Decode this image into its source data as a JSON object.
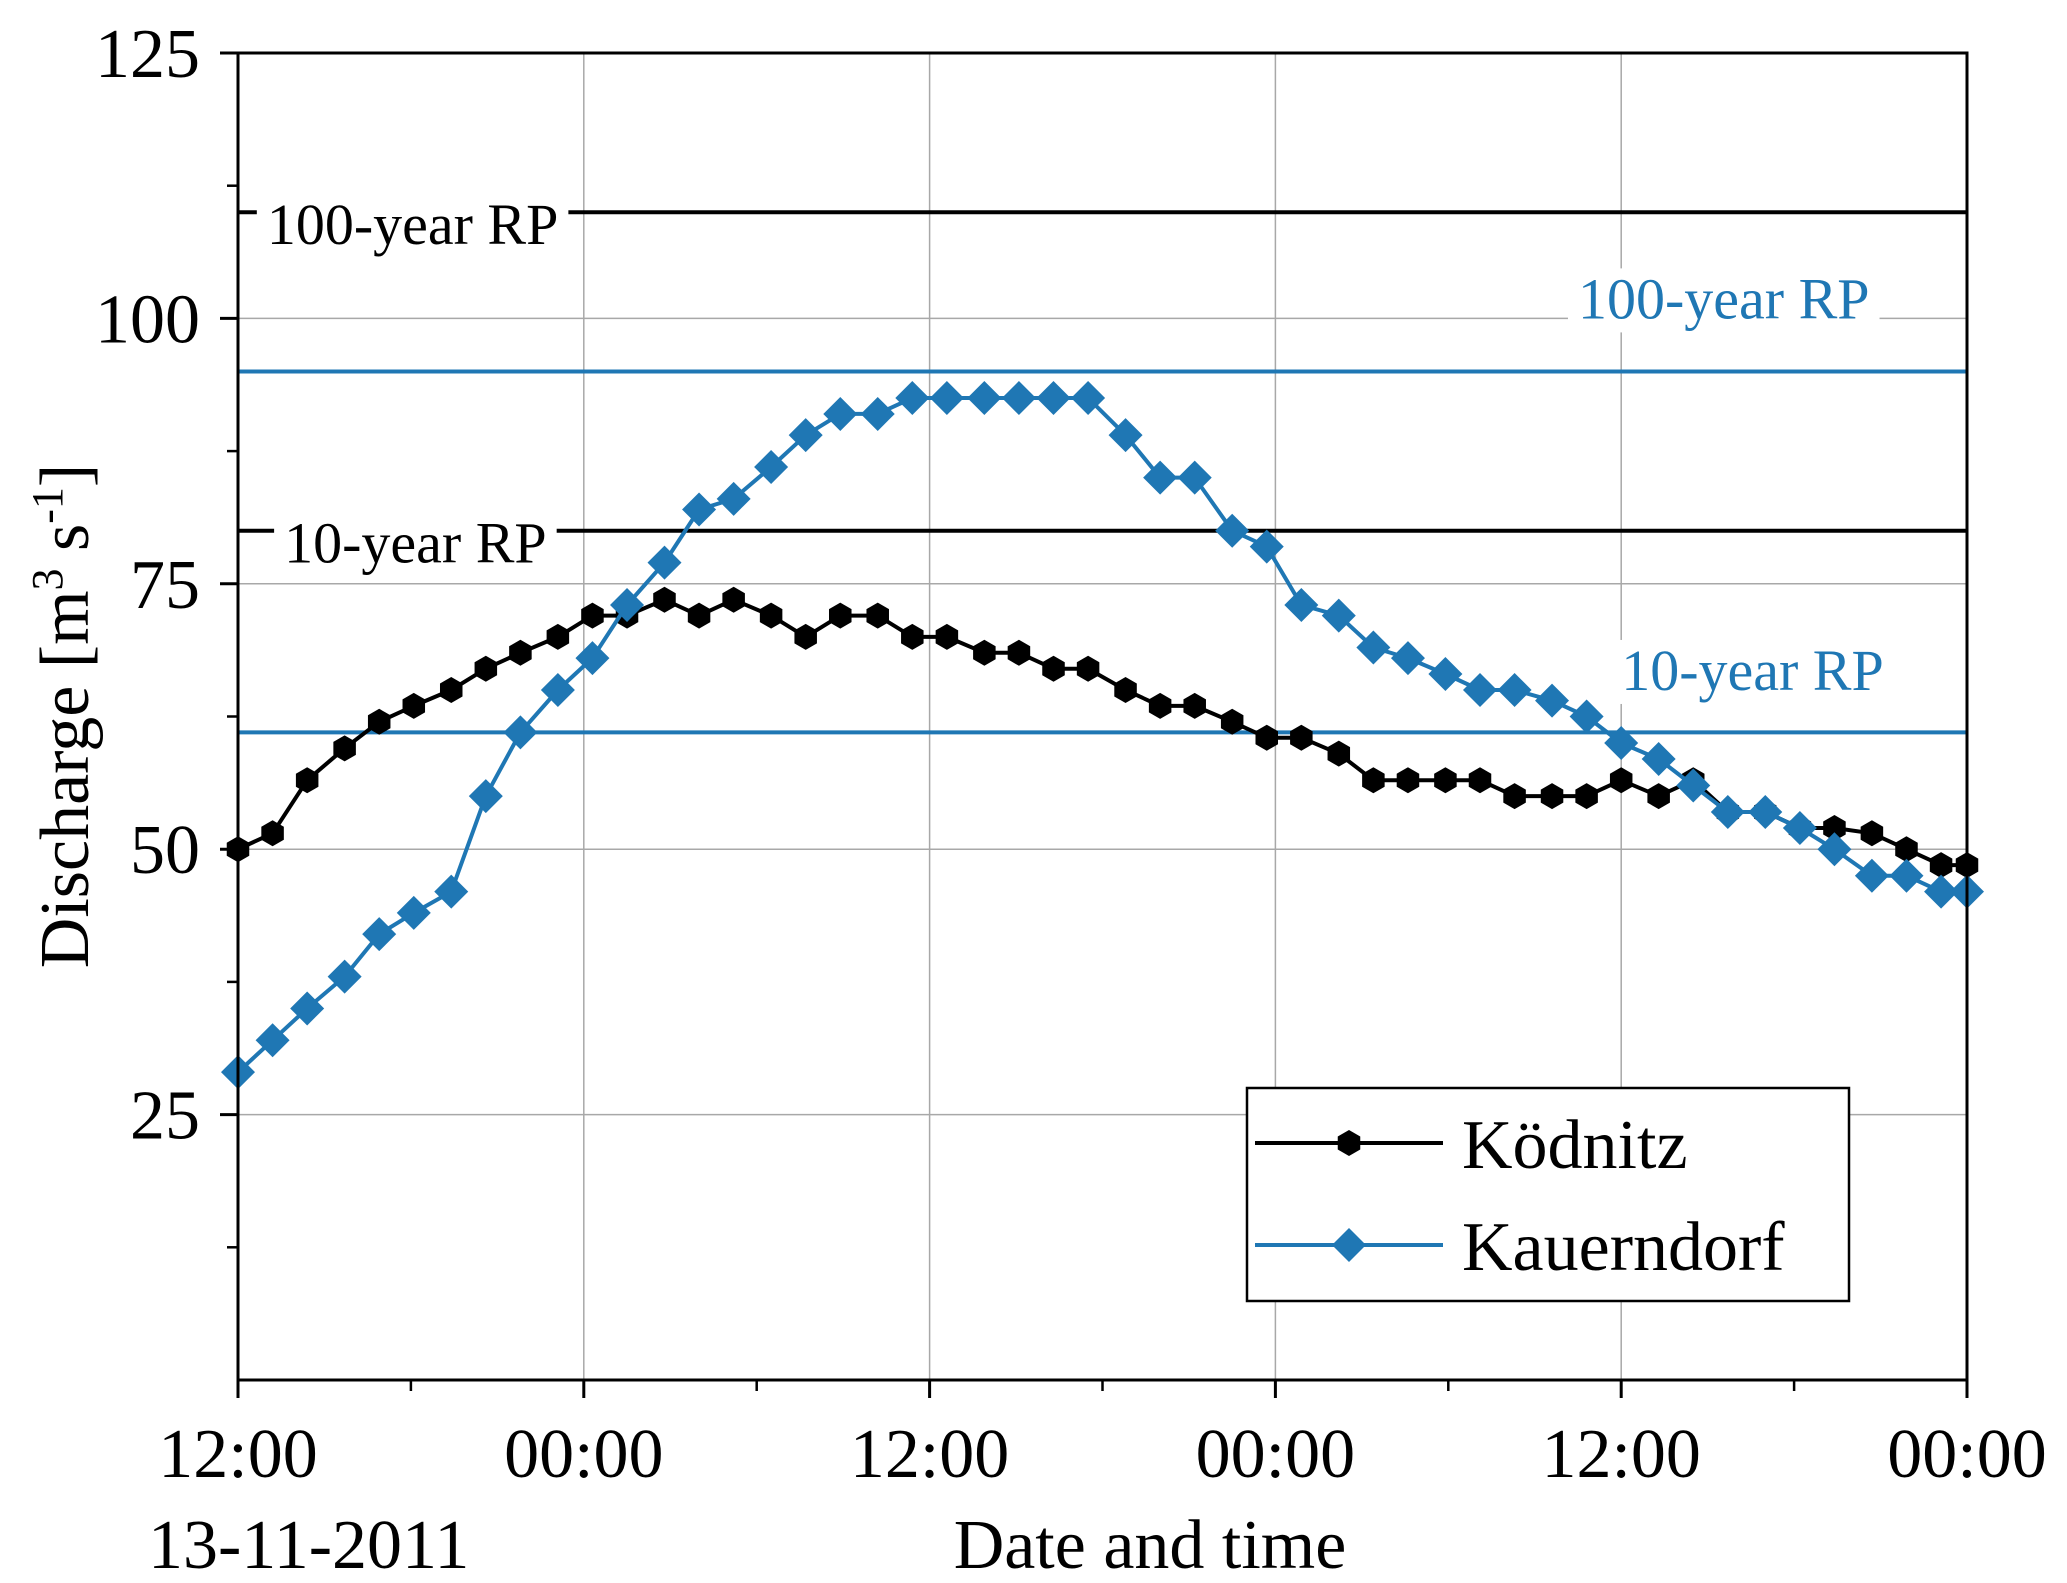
{
  "chart_data": {
    "type": "line",
    "xlabel": "Date and time",
    "ylabel_main": "Discharge [m",
    "ylabel_sup1": "3",
    "ylabel_mid": " s",
    "ylabel_sup2": "-1",
    "ylabel_end": "]",
    "start_date_label": "13-11-2011",
    "xlim": [
      0,
      60
    ],
    "ylim": [
      0,
      125
    ],
    "x_ticks": [
      0,
      12,
      24,
      36,
      48,
      60
    ],
    "x_tick_labels": [
      "12:00",
      "00:00",
      "12:00",
      "00:00",
      "12:00",
      "00:00"
    ],
    "x_minor_ticks": [
      6,
      18,
      30,
      42,
      54
    ],
    "y_ticks": [
      25,
      50,
      75,
      100,
      125
    ],
    "y_tick_labels": [
      "25",
      "50",
      "75",
      "100",
      "125"
    ],
    "y_minor_ticks": [
      12.5,
      37.5,
      62.5,
      87.5,
      112.5
    ],
    "grid": true,
    "legend_position": "bottom-right",
    "reference_lines": [
      {
        "label": "100-year RP",
        "value": 110,
        "color": "#000000",
        "label_x": 1,
        "label_dy": -3
      },
      {
        "label": "10-year RP",
        "value": 80,
        "color": "#000000",
        "label_x": 1.6,
        "label_dy": -3
      },
      {
        "label": "100-year RP",
        "value": 95,
        "color": "#1f77b4",
        "label_x": 46.5,
        "label_dy": 5
      },
      {
        "label": "10-year RP",
        "value": 61,
        "color": "#1f77b4",
        "label_x": 48,
        "label_dy": 4
      }
    ],
    "series": [
      {
        "name": "Ködnitz",
        "color": "#000000",
        "marker": "hexagon",
        "x": [
          0,
          1.2,
          2.4,
          3.7,
          4.9,
          6.1,
          7.4,
          8.6,
          9.8,
          11.1,
          12.3,
          13.5,
          14.8,
          16,
          17.2,
          18.5,
          19.7,
          20.9,
          22.2,
          23.4,
          24.6,
          25.9,
          27.1,
          28.3,
          29.5,
          30.8,
          32,
          33.2,
          34.5,
          35.7,
          36.9,
          38.2,
          39.4,
          40.6,
          41.9,
          43.1,
          44.3,
          45.6,
          46.8,
          48,
          49.3,
          50.5,
          51.7,
          53,
          54.2,
          55.4,
          56.7,
          57.9,
          59.1,
          60
        ],
        "y": [
          50,
          51.5,
          56.5,
          59.5,
          62,
          63.5,
          65,
          67,
          68.5,
          70,
          72,
          72,
          73.5,
          72,
          73.5,
          72,
          70,
          72,
          72,
          70,
          70,
          68.5,
          68.5,
          67,
          67,
          65,
          63.5,
          63.5,
          62,
          60.5,
          60.5,
          59,
          56.5,
          56.5,
          56.5,
          56.5,
          55,
          55,
          55,
          56.5,
          55,
          56.5,
          53.5,
          53.5,
          52,
          52,
          51.5,
          50,
          48.5,
          48.5
        ]
      },
      {
        "name": "Kauerndorf",
        "color": "#1f77b4",
        "marker": "diamond",
        "x": [
          0,
          1.2,
          2.4,
          3.7,
          4.9,
          6.1,
          7.4,
          8.6,
          9.8,
          11.1,
          12.3,
          13.5,
          14.8,
          16,
          17.2,
          18.5,
          19.7,
          20.9,
          22.2,
          23.4,
          24.6,
          25.9,
          27.1,
          28.3,
          29.5,
          30.8,
          32,
          33.2,
          34.5,
          35.7,
          36.9,
          38.2,
          39.4,
          40.6,
          41.9,
          43.1,
          44.3,
          45.6,
          46.8,
          48,
          49.3,
          50.5,
          51.7,
          53,
          54.2,
          55.4,
          56.7,
          57.9,
          59.1,
          60
        ],
        "y": [
          29,
          32,
          35,
          38,
          42,
          44,
          46,
          55,
          61,
          65,
          68,
          73,
          77,
          82,
          83,
          86,
          89,
          91,
          91,
          92.5,
          92.5,
          92.5,
          92.5,
          92.5,
          92.5,
          89,
          85,
          85,
          80,
          78.5,
          73,
          72,
          69,
          68,
          66.5,
          65,
          65,
          64,
          62.5,
          60,
          58.5,
          56,
          53.5,
          53.5,
          52,
          50,
          47.5,
          47.5,
          46,
          46
        ]
      }
    ]
  }
}
